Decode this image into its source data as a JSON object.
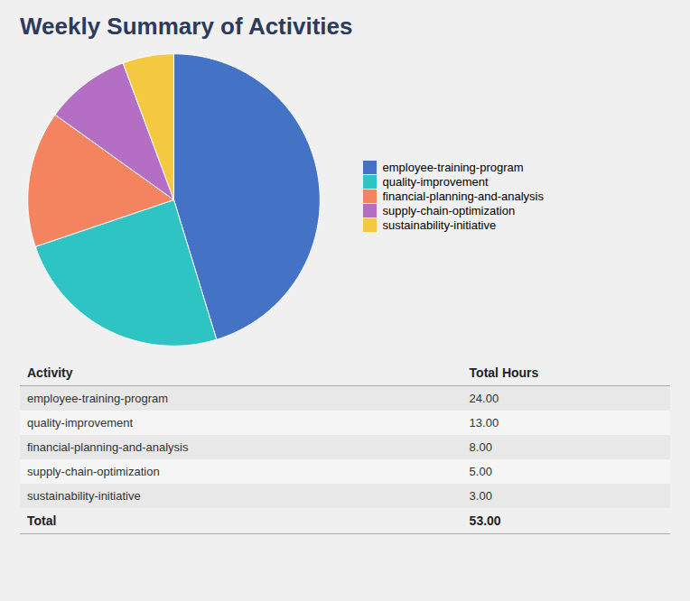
{
  "chart_data": {
    "type": "pie",
    "title": "Weekly Summary of Activities",
    "categories": [
      "employee-training-program",
      "quality-improvement",
      "financial-planning-and-analysis",
      "supply-chain-optimization",
      "sustainability-initiative"
    ],
    "values": [
      24.0,
      13.0,
      8.0,
      5.0,
      3.0
    ],
    "value_labels": [
      "24.00",
      "13.00",
      "8.00",
      "5.00",
      "3.00"
    ],
    "colors": [
      "#4472C4",
      "#2EC4C4",
      "#F4845F",
      "#B46FC4",
      "#F5C842"
    ],
    "legend": "right",
    "table": {
      "columns": [
        "Activity",
        "Total Hours"
      ],
      "total": {
        "label": "Total",
        "value": 53.0,
        "value_label": "53.00"
      }
    }
  }
}
